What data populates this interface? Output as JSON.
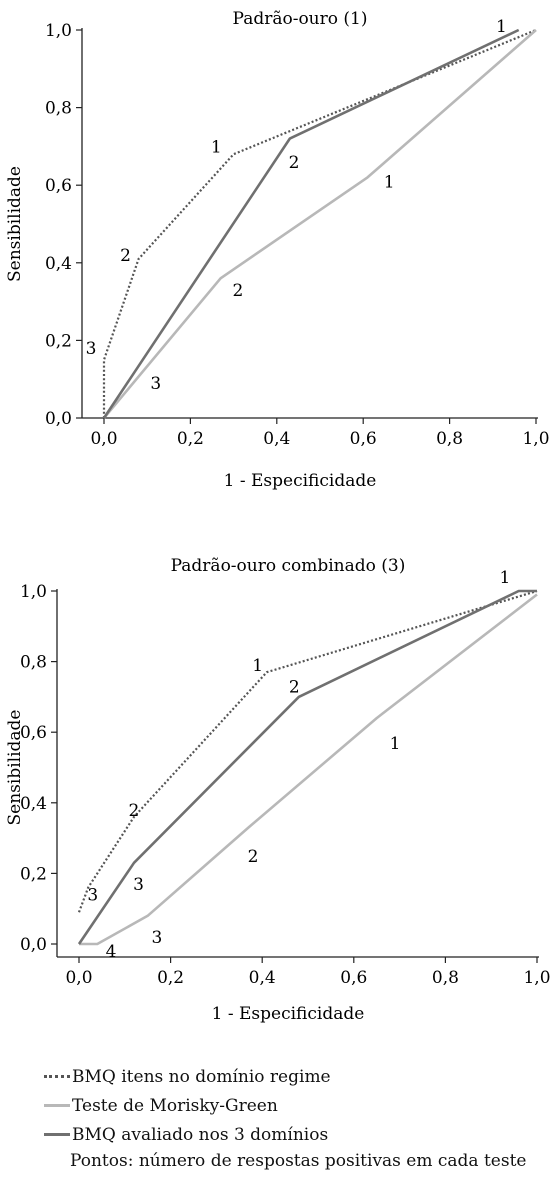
{
  "chart_data": [
    {
      "type": "line",
      "title": "Padrão-ouro (1)",
      "xlabel": "1 - Especificidade",
      "ylabel": "Sensibilidade",
      "xlim": [
        0,
        1
      ],
      "ylim": [
        0,
        1
      ],
      "xticks": [
        "0,0",
        "0,2",
        "0,4",
        "0,6",
        "0,8",
        "1,0"
      ],
      "yticks": [
        "0,0",
        "0,2",
        "0,4",
        "0,6",
        "0,8",
        "1,0"
      ],
      "series": [
        {
          "name": "BMQ itens no domínio regime",
          "style": "dotted",
          "color": "#555555",
          "points": [
            [
              0.0,
              0.0
            ],
            [
              0.0,
              0.15
            ],
            [
              0.08,
              0.41
            ],
            [
              0.3,
              0.68
            ],
            [
              1.0,
              1.0
            ]
          ],
          "labels": [
            {
              "text": "3",
              "x": -0.03,
              "y": 0.18
            },
            {
              "text": "2",
              "x": 0.05,
              "y": 0.42
            },
            {
              "text": "1",
              "x": 0.26,
              "y": 0.7
            }
          ]
        },
        {
          "name": "Teste de Morisky-Green",
          "style": "solid",
          "color": "#b8b8b8",
          "points": [
            [
              0.0,
              0.0
            ],
            [
              0.27,
              0.36
            ],
            [
              0.61,
              0.62
            ],
            [
              1.0,
              1.0
            ]
          ],
          "labels": [
            {
              "text": "3",
              "x": 0.12,
              "y": 0.09
            },
            {
              "text": "2",
              "x": 0.31,
              "y": 0.33
            },
            {
              "text": "1",
              "x": 0.66,
              "y": 0.61
            }
          ]
        },
        {
          "name": "BMQ avaliado nos 3 domínios",
          "style": "solid",
          "color": "#707070",
          "points": [
            [
              0.0,
              0.0
            ],
            [
              0.43,
              0.72
            ],
            [
              0.96,
              1.0
            ]
          ],
          "labels": [
            {
              "text": "2",
              "x": 0.44,
              "y": 0.66
            },
            {
              "text": "1",
              "x": 0.92,
              "y": 1.01
            }
          ]
        }
      ]
    },
    {
      "type": "line",
      "title": "Padrão-ouro combinado (3)",
      "xlabel": "1 - Especificidade",
      "ylabel": "Sensibilidade",
      "xlim": [
        0,
        1
      ],
      "ylim": [
        0,
        1
      ],
      "xticks": [
        "0,0",
        "0,2",
        "0,4",
        "0,6",
        "0,8",
        "1,0"
      ],
      "yticks": [
        "0,0",
        "0,2",
        "0,4",
        "0,6",
        "0,8",
        "1,0"
      ],
      "series": [
        {
          "name": "BMQ itens no domínio regime",
          "style": "dotted",
          "color": "#555555",
          "points": [
            [
              0.0,
              0.09
            ],
            [
              0.02,
              0.16
            ],
            [
              0.12,
              0.36
            ],
            [
              0.41,
              0.77
            ],
            [
              1.0,
              1.0
            ]
          ],
          "labels": [
            {
              "text": "3",
              "x": 0.03,
              "y": 0.14
            },
            {
              "text": "2",
              "x": 0.12,
              "y": 0.38
            },
            {
              "text": "1",
              "x": 0.39,
              "y": 0.79
            }
          ]
        },
        {
          "name": "Teste de Morisky-Green",
          "style": "solid",
          "color": "#b8b8b8",
          "points": [
            [
              0.0,
              0.0
            ],
            [
              0.04,
              0.0
            ],
            [
              0.15,
              0.08
            ],
            [
              0.37,
              0.33
            ],
            [
              0.65,
              0.64
            ],
            [
              1.0,
              0.99
            ]
          ],
          "labels": [
            {
              "text": "4",
              "x": 0.07,
              "y": -0.02
            },
            {
              "text": "3",
              "x": 0.17,
              "y": 0.02
            },
            {
              "text": "2",
              "x": 0.38,
              "y": 0.25
            },
            {
              "text": "1",
              "x": 0.69,
              "y": 0.57
            }
          ]
        },
        {
          "name": "BMQ avaliado nos 3 domínios",
          "style": "solid",
          "color": "#707070",
          "points": [
            [
              0.0,
              0.0
            ],
            [
              0.12,
              0.23
            ],
            [
              0.48,
              0.7
            ],
            [
              0.96,
              1.0
            ],
            [
              1.0,
              1.0
            ]
          ],
          "labels": [
            {
              "text": "3",
              "x": 0.13,
              "y": 0.17
            },
            {
              "text": "2",
              "x": 0.47,
              "y": 0.73
            },
            {
              "text": "1",
              "x": 0.93,
              "y": 1.04
            }
          ]
        }
      ]
    }
  ],
  "legend": {
    "items": [
      {
        "label": "BMQ itens no domínio regime",
        "style": "dotted",
        "color": "#555555"
      },
      {
        "label": "Teste de Morisky-Green",
        "style": "solid",
        "color": "#b8b8b8"
      },
      {
        "label": "BMQ avaliado nos 3 domínios",
        "style": "solid",
        "color": "#707070"
      }
    ],
    "note": "Pontos: número de respostas positivas em cada teste"
  }
}
